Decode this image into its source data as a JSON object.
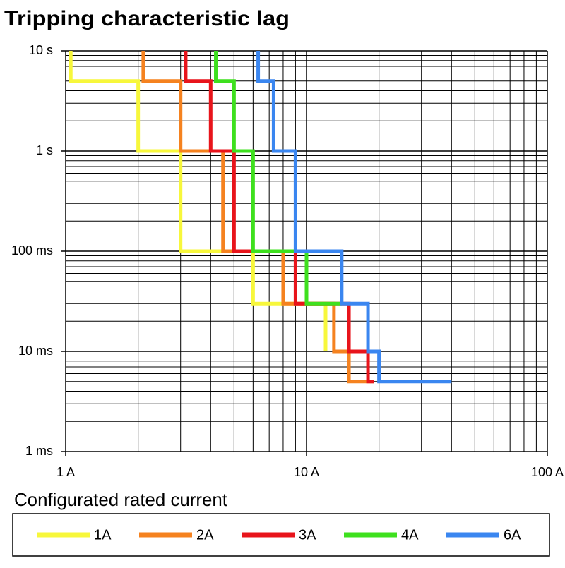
{
  "chart_data": {
    "type": "line",
    "title": "Tripping characteristic lag",
    "x_label": "Configurated rated current",
    "log_x": true,
    "log_y": true,
    "grid": true,
    "xlim": [
      1,
      100
    ],
    "xticks": [
      {
        "value": 1,
        "label": "1 A"
      },
      {
        "value": 10,
        "label": "10 A"
      },
      {
        "value": 100,
        "label": "100 A"
      }
    ],
    "ylim": [
      0.001,
      10
    ],
    "yticks": [
      {
        "value": 0.001,
        "label": "1 ms"
      },
      {
        "value": 0.01,
        "label": "10 ms"
      },
      {
        "value": 0.1,
        "label": "100 ms"
      },
      {
        "value": 1,
        "label": "1 s"
      },
      {
        "value": 10,
        "label": "10 s"
      }
    ],
    "series": [
      {
        "name": "1A",
        "color": "#f7f73b",
        "x": [
          1.05,
          1.05,
          2,
          2,
          3,
          3,
          6,
          6,
          12,
          12
        ],
        "values": [
          10,
          5,
          5,
          1,
          1,
          0.1,
          0.1,
          0.03,
          0.03,
          0.01
        ]
      },
      {
        "name": "2A",
        "color": "#f5821f",
        "x": [
          2.1,
          2.1,
          3,
          3,
          4.5,
          4.5,
          8,
          8,
          13,
          13,
          15,
          15,
          19
        ],
        "values": [
          10,
          5,
          5,
          1,
          1,
          0.1,
          0.1,
          0.03,
          0.03,
          0.01,
          0.01,
          0.005,
          0.005
        ]
      },
      {
        "name": "3A",
        "color": "#e8141b",
        "x": [
          3.15,
          3.15,
          4,
          4,
          5,
          5,
          9,
          9,
          15,
          15,
          18,
          18,
          19
        ],
        "values": [
          10,
          5,
          5,
          1,
          1,
          0.1,
          0.1,
          0.03,
          0.03,
          0.01,
          0.01,
          0.005,
          0.005
        ]
      },
      {
        "name": "4A",
        "color": "#3ee01e",
        "x": [
          4.2,
          4.2,
          5,
          5,
          6,
          6,
          10,
          10,
          14
        ],
        "values": [
          10,
          5,
          5,
          1,
          1,
          0.1,
          0.1,
          0.03,
          0.03
        ]
      },
      {
        "name": "6A",
        "color": "#3a86f0",
        "x": [
          6.3,
          6.3,
          7.3,
          7.3,
          9,
          9,
          14,
          14,
          18,
          18,
          20,
          20,
          40
        ],
        "values": [
          10,
          5,
          5,
          1,
          1,
          0.1,
          0.1,
          0.03,
          0.03,
          0.01,
          0.01,
          0.005,
          0.005
        ]
      }
    ]
  }
}
